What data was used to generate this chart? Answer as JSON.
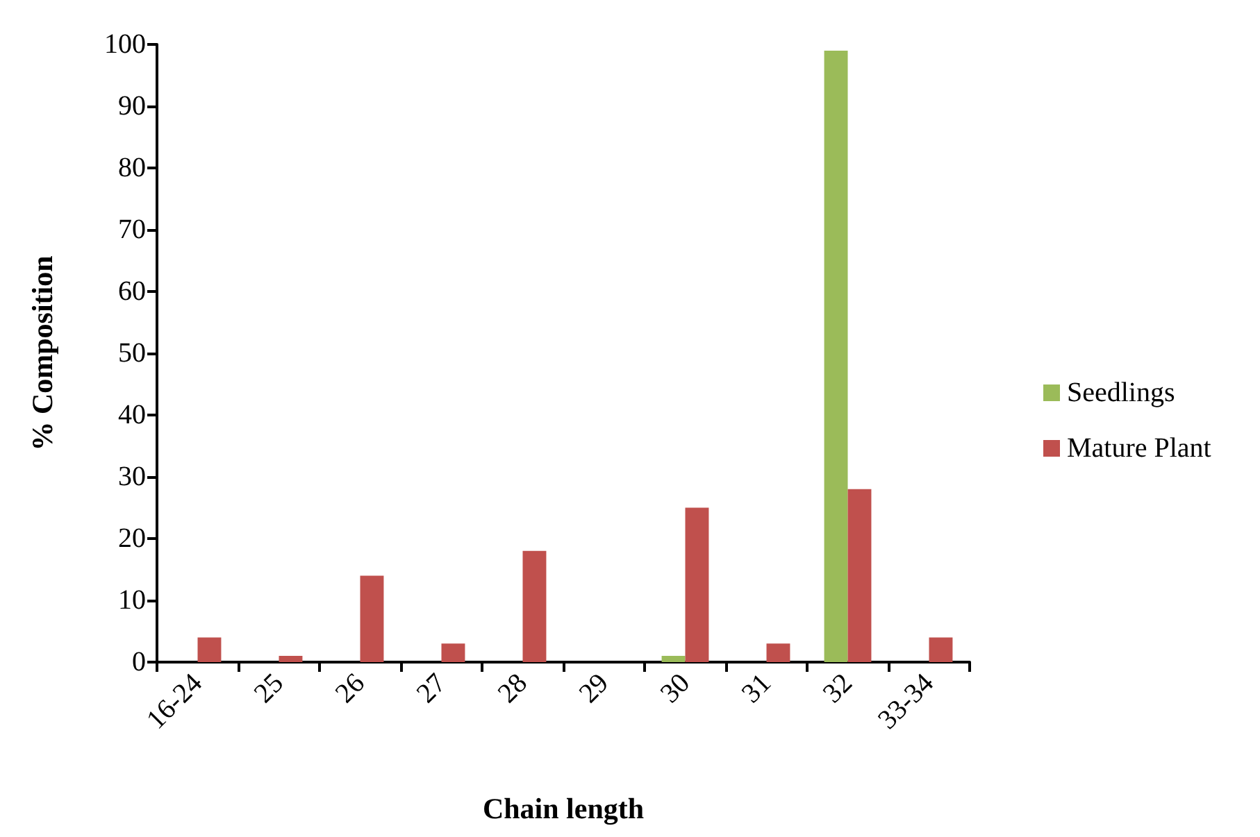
{
  "chart_data": {
    "type": "bar",
    "xlabel": "Chain length",
    "ylabel": "% Composition",
    "categories": [
      "16-24",
      "25",
      "26",
      "27",
      "28",
      "29",
      "30",
      "31",
      "32",
      "33-34"
    ],
    "series": [
      {
        "name": "Seedlings",
        "color": "#9bbb59",
        "values": [
          0,
          0,
          0,
          0,
          0,
          0,
          1,
          0,
          99,
          0
        ]
      },
      {
        "name": "Mature Plant",
        "color": "#c0504d",
        "values": [
          4,
          1,
          14,
          3,
          18,
          0,
          25,
          3,
          28,
          4
        ]
      }
    ],
    "ylim": [
      0,
      100
    ],
    "yticks": [
      0,
      10,
      20,
      30,
      40,
      50,
      60,
      70,
      80,
      90,
      100
    ],
    "grid": false,
    "legend": "right"
  }
}
